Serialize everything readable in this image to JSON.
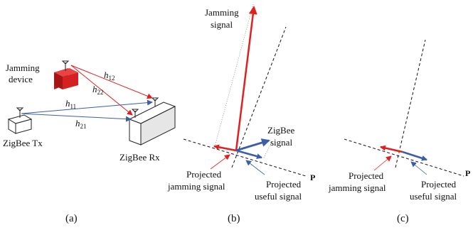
{
  "panel_a": {
    "jamming_device": [
      "Jamming",
      "device"
    ],
    "zigbee_tx": "ZigBee Tx",
    "zigbee_rx": "ZigBee Rx",
    "channels": [
      {
        "base": "h",
        "sub": "12"
      },
      {
        "base": "h",
        "sub": "22"
      },
      {
        "base": "h",
        "sub": "11"
      },
      {
        "base": "h",
        "sub": "21"
      }
    ],
    "caption": "(a)"
  },
  "panel_b": {
    "jamming_signal": [
      "Jamming",
      "signal"
    ],
    "zigbee_signal": [
      "ZigBee",
      "signal"
    ],
    "projected_jamming": [
      "Projected",
      "jamming signal"
    ],
    "projected_useful": [
      "Projected",
      "useful signal"
    ],
    "plane_label": "P",
    "caption": "(b)"
  },
  "panel_c": {
    "projected_jamming": [
      "Projected",
      "jamming signal"
    ],
    "projected_useful": [
      "Projected",
      "useful signal"
    ],
    "plane_label": "P",
    "caption": "(c)"
  },
  "colors": {
    "jamming_red": "#e02020",
    "useful_blue": "#3a5fa8",
    "device_red": "#d42222"
  }
}
